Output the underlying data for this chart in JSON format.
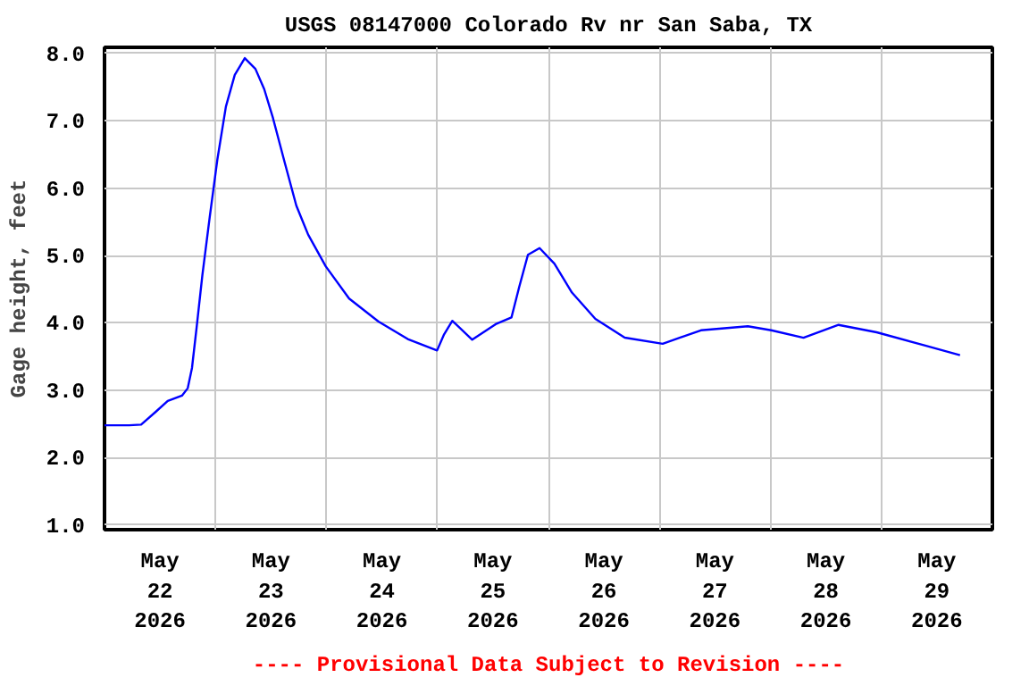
{
  "chart_data": {
    "type": "line",
    "title": "USGS 08147000 Colorado Rv nr San Saba, TX",
    "ylabel": "Gage height, feet",
    "annotations": [
      "---- Provisional Data Subject to Revision ----"
    ],
    "x": [
      "2026-05-22T00:00",
      "2026-05-22T05:20",
      "2026-05-22T07:55",
      "2026-05-22T11:05",
      "2026-05-22T13:40",
      "2026-05-22T16:45",
      "2026-05-22T18:00",
      "2026-05-22T18:55",
      "2026-05-22T19:55",
      "2026-05-22T21:10",
      "2026-05-22T22:45",
      "2026-05-23T00:25",
      "2026-05-23T02:15",
      "2026-05-23T04:10",
      "2026-05-23T06:20",
      "2026-05-23T08:38",
      "2026-05-23T10:32",
      "2026-05-23T12:26",
      "2026-05-23T14:56",
      "2026-05-23T17:29",
      "2026-05-23T20:02",
      "2026-05-23T23:50",
      "2026-05-24T04:54",
      "2026-05-24T11:15",
      "2026-05-24T17:34",
      "2026-05-24T23:55",
      "2026-05-25T01:26",
      "2026-05-25T03:13",
      "2026-05-25T07:31",
      "2026-05-25T12:35",
      "2026-05-25T16:00",
      "2026-05-25T17:40",
      "2026-05-25T19:34",
      "2026-05-25T22:05",
      "2026-05-26T01:17",
      "2026-05-26T05:05",
      "2026-05-26T10:09",
      "2026-05-26T16:30",
      "2026-05-27T00:42",
      "2026-05-27T08:58",
      "2026-05-27T19:07",
      "2026-05-28T00:11",
      "2026-05-28T07:09",
      "2026-05-28T14:44",
      "2026-05-28T22:58",
      "2026-05-29T09:08",
      "2026-05-29T17:00"
    ],
    "series": [
      {
        "color": "#0000ff",
        "values": [
          2.48,
          2.48,
          2.49,
          2.68,
          2.84,
          2.92,
          3.03,
          3.33,
          3.93,
          4.71,
          5.57,
          6.43,
          7.21,
          7.68,
          7.93,
          7.77,
          7.47,
          7.04,
          6.39,
          5.74,
          5.31,
          4.84,
          4.36,
          4.02,
          3.76,
          3.59,
          3.83,
          4.03,
          3.75,
          3.98,
          4.08,
          4.53,
          5.01,
          5.11,
          4.88,
          4.45,
          4.06,
          3.78,
          3.69,
          3.89,
          3.95,
          3.89,
          3.78,
          3.97,
          3.86,
          3.67,
          3.52
        ]
      }
    ],
    "xlim": [
      "2026-05-22T00:00",
      "2026-05-30T00:00"
    ],
    "xticks": [
      {
        "value": "2026-05-22T12:00",
        "label": "May\n22\n2026"
      },
      {
        "value": "2026-05-23T00:00",
        "label": null
      },
      {
        "value": "2026-05-23T12:00",
        "label": "May\n23\n2026"
      },
      {
        "value": "2026-05-24T00:00",
        "label": null
      },
      {
        "value": "2026-05-24T12:00",
        "label": "May\n24\n2026"
      },
      {
        "value": "2026-05-25T00:00",
        "label": null
      },
      {
        "value": "2026-05-25T12:00",
        "label": "May\n25\n2026"
      },
      {
        "value": "2026-05-26T00:00",
        "label": null
      },
      {
        "value": "2026-05-26T12:00",
        "label": "May\n26\n2026"
      },
      {
        "value": "2026-05-27T00:00",
        "label": null
      },
      {
        "value": "2026-05-27T12:00",
        "label": "May\n27\n2026"
      },
      {
        "value": "2026-05-28T00:00",
        "label": null
      },
      {
        "value": "2026-05-28T12:00",
        "label": "May\n28\n2026"
      },
      {
        "value": "2026-05-29T00:00",
        "label": null
      },
      {
        "value": "2026-05-29T12:00",
        "label": "May\n29\n2026"
      }
    ],
    "ylim": [
      0.93,
      8.09
    ],
    "yticks": [
      {
        "value": 1,
        "label": "1.0"
      },
      {
        "value": 2,
        "label": "2.0"
      },
      {
        "value": 3,
        "label": "3.0"
      },
      {
        "value": 4,
        "label": "4.0"
      },
      {
        "value": 5,
        "label": "5.0"
      },
      {
        "value": 6,
        "label": "6.0"
      },
      {
        "value": 7,
        "label": "7.0"
      },
      {
        "value": 8,
        "label": "8.0"
      }
    ],
    "grid": true
  }
}
